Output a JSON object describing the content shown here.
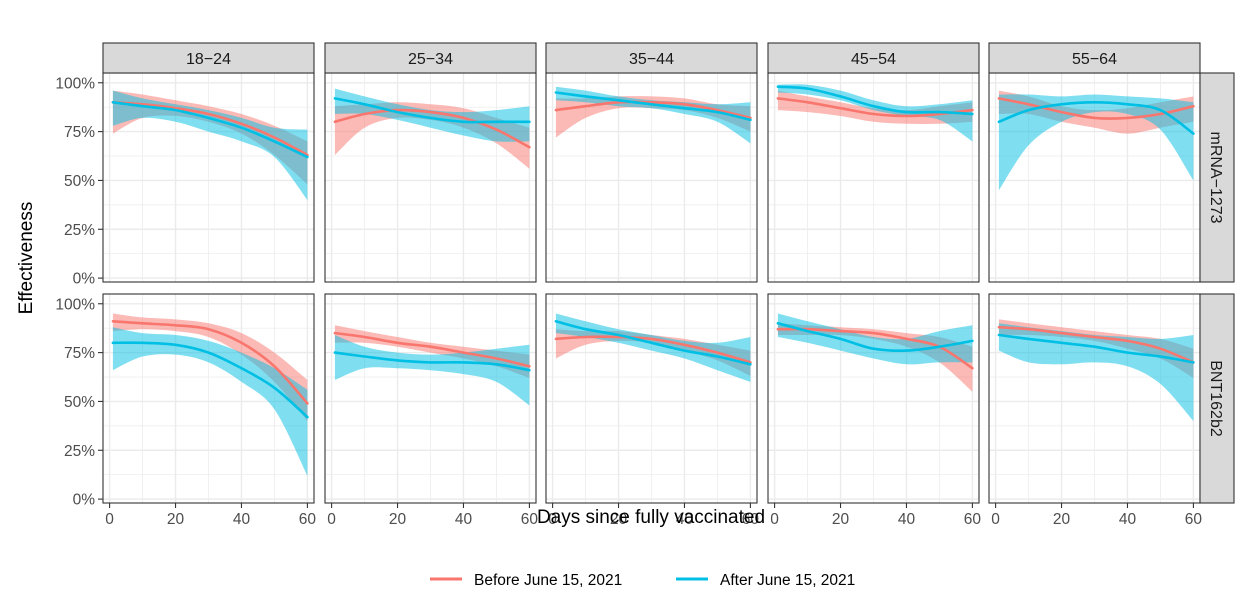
{
  "chart_data": {
    "type": "line",
    "xlabel": "Days since fully vaccinated",
    "ylabel": "Effectiveness",
    "xlim": [
      -2,
      62
    ],
    "ylim": [
      -0.02,
      1.05
    ],
    "x_ticks": [
      0,
      20,
      40,
      60
    ],
    "x_tick_labels": [
      "0",
      "20",
      "40",
      "60"
    ],
    "y_ticks": [
      0,
      0.25,
      0.5,
      0.75,
      1.0
    ],
    "y_tick_labels": [
      "0%",
      "25%",
      "50%",
      "75%",
      "100%"
    ],
    "grid": true,
    "legend_position": "bottom",
    "columns": [
      "18−24",
      "25−34",
      "35−44",
      "45−54",
      "55−64"
    ],
    "rows": [
      "mRNA−1273",
      "BNT162b2"
    ],
    "colors": {
      "before": "#F8766D",
      "after": "#00BFE4"
    },
    "legend": [
      {
        "key": "before",
        "label": "Before June 15, 2021"
      },
      {
        "key": "after",
        "label": "After June 15, 2021"
      }
    ],
    "x": [
      1,
      10,
      20,
      30,
      40,
      50,
      60
    ],
    "panels": [
      {
        "row": 0,
        "col": 0,
        "before": {
          "y": [
            0.9,
            0.89,
            0.87,
            0.84,
            0.79,
            0.72,
            0.63
          ],
          "lo": [
            0.74,
            0.82,
            0.83,
            0.8,
            0.74,
            0.63,
            0.48
          ],
          "hi": [
            0.96,
            0.94,
            0.91,
            0.88,
            0.84,
            0.78,
            0.7
          ]
        },
        "after": {
          "y": [
            0.9,
            0.88,
            0.86,
            0.82,
            0.77,
            0.7,
            0.62
          ],
          "lo": [
            0.78,
            0.82,
            0.8,
            0.75,
            0.7,
            0.62,
            0.4
          ],
          "hi": [
            0.96,
            0.92,
            0.89,
            0.86,
            0.82,
            0.77,
            0.76
          ]
        }
      },
      {
        "row": 0,
        "col": 1,
        "before": {
          "y": [
            0.8,
            0.84,
            0.86,
            0.85,
            0.82,
            0.76,
            0.67
          ],
          "lo": [
            0.63,
            0.77,
            0.82,
            0.81,
            0.77,
            0.69,
            0.56
          ],
          "hi": [
            0.88,
            0.89,
            0.9,
            0.89,
            0.87,
            0.82,
            0.77
          ]
        },
        "after": {
          "y": [
            0.92,
            0.89,
            0.85,
            0.82,
            0.8,
            0.8,
            0.8
          ],
          "lo": [
            0.84,
            0.84,
            0.81,
            0.77,
            0.73,
            0.7,
            0.7
          ],
          "hi": [
            0.97,
            0.93,
            0.89,
            0.86,
            0.85,
            0.86,
            0.88
          ]
        }
      },
      {
        "row": 0,
        "col": 2,
        "before": {
          "y": [
            0.86,
            0.88,
            0.9,
            0.9,
            0.89,
            0.86,
            0.82
          ],
          "lo": [
            0.72,
            0.82,
            0.87,
            0.87,
            0.86,
            0.82,
            0.75
          ],
          "hi": [
            0.92,
            0.92,
            0.93,
            0.93,
            0.92,
            0.89,
            0.88
          ]
        },
        "after": {
          "y": [
            0.95,
            0.93,
            0.91,
            0.89,
            0.87,
            0.85,
            0.81
          ],
          "lo": [
            0.91,
            0.9,
            0.88,
            0.87,
            0.84,
            0.8,
            0.69
          ],
          "hi": [
            0.98,
            0.96,
            0.93,
            0.91,
            0.9,
            0.89,
            0.9
          ]
        }
      },
      {
        "row": 0,
        "col": 3,
        "before": {
          "y": [
            0.92,
            0.9,
            0.87,
            0.84,
            0.83,
            0.84,
            0.86
          ],
          "lo": [
            0.86,
            0.85,
            0.83,
            0.8,
            0.79,
            0.79,
            0.8
          ],
          "hi": [
            0.96,
            0.93,
            0.9,
            0.87,
            0.86,
            0.88,
            0.9
          ]
        },
        "after": {
          "y": [
            0.98,
            0.97,
            0.93,
            0.88,
            0.85,
            0.85,
            0.84
          ],
          "lo": [
            0.95,
            0.94,
            0.91,
            0.86,
            0.83,
            0.81,
            0.7
          ],
          "hi": [
            0.99,
            0.99,
            0.96,
            0.91,
            0.88,
            0.89,
            0.91
          ]
        }
      },
      {
        "row": 0,
        "col": 4,
        "before": {
          "y": [
            0.92,
            0.89,
            0.85,
            0.82,
            0.82,
            0.84,
            0.88
          ],
          "lo": [
            0.84,
            0.84,
            0.8,
            0.77,
            0.74,
            0.77,
            0.8
          ],
          "hi": [
            0.96,
            0.93,
            0.88,
            0.86,
            0.87,
            0.9,
            0.93
          ]
        },
        "after": {
          "y": [
            0.8,
            0.86,
            0.89,
            0.9,
            0.89,
            0.86,
            0.74
          ],
          "lo": [
            0.45,
            0.68,
            0.8,
            0.85,
            0.84,
            0.76,
            0.5
          ],
          "hi": [
            0.94,
            0.94,
            0.93,
            0.94,
            0.93,
            0.92,
            0.9
          ]
        }
      },
      {
        "row": 1,
        "col": 0,
        "before": {
          "y": [
            0.91,
            0.9,
            0.89,
            0.87,
            0.8,
            0.68,
            0.49
          ],
          "lo": [
            0.86,
            0.87,
            0.86,
            0.83,
            0.74,
            0.6,
            0.4
          ],
          "hi": [
            0.95,
            0.93,
            0.92,
            0.9,
            0.85,
            0.75,
            0.61
          ]
        },
        "after": {
          "y": [
            0.8,
            0.8,
            0.79,
            0.75,
            0.67,
            0.57,
            0.42
          ],
          "lo": [
            0.66,
            0.73,
            0.74,
            0.7,
            0.6,
            0.46,
            0.12
          ],
          "hi": [
            0.88,
            0.85,
            0.84,
            0.81,
            0.75,
            0.67,
            0.56
          ]
        }
      },
      {
        "row": 1,
        "col": 1,
        "before": {
          "y": [
            0.85,
            0.83,
            0.8,
            0.78,
            0.75,
            0.72,
            0.68
          ],
          "lo": [
            0.8,
            0.8,
            0.78,
            0.75,
            0.72,
            0.68,
            0.62
          ],
          "hi": [
            0.89,
            0.86,
            0.83,
            0.8,
            0.78,
            0.76,
            0.74
          ]
        },
        "after": {
          "y": [
            0.75,
            0.73,
            0.71,
            0.7,
            0.7,
            0.69,
            0.66
          ],
          "lo": [
            0.61,
            0.67,
            0.67,
            0.66,
            0.64,
            0.6,
            0.48
          ],
          "hi": [
            0.84,
            0.78,
            0.75,
            0.74,
            0.75,
            0.77,
            0.79
          ]
        }
      },
      {
        "row": 1,
        "col": 2,
        "before": {
          "y": [
            0.82,
            0.83,
            0.83,
            0.82,
            0.79,
            0.75,
            0.7
          ],
          "lo": [
            0.72,
            0.79,
            0.81,
            0.8,
            0.76,
            0.71,
            0.63
          ],
          "hi": [
            0.87,
            0.86,
            0.86,
            0.84,
            0.82,
            0.79,
            0.76
          ]
        },
        "after": {
          "y": [
            0.91,
            0.87,
            0.84,
            0.8,
            0.76,
            0.73,
            0.69
          ],
          "lo": [
            0.85,
            0.83,
            0.8,
            0.76,
            0.72,
            0.66,
            0.6
          ],
          "hi": [
            0.95,
            0.91,
            0.87,
            0.84,
            0.81,
            0.8,
            0.83
          ]
        }
      },
      {
        "row": 1,
        "col": 3,
        "before": {
          "y": [
            0.87,
            0.87,
            0.86,
            0.85,
            0.82,
            0.78,
            0.67
          ],
          "lo": [
            0.84,
            0.84,
            0.84,
            0.82,
            0.78,
            0.7,
            0.55
          ],
          "hi": [
            0.9,
            0.89,
            0.88,
            0.87,
            0.85,
            0.83,
            0.78
          ]
        },
        "after": {
          "y": [
            0.9,
            0.86,
            0.82,
            0.77,
            0.76,
            0.78,
            0.81
          ],
          "lo": [
            0.83,
            0.8,
            0.76,
            0.72,
            0.69,
            0.7,
            0.7
          ],
          "hi": [
            0.95,
            0.91,
            0.87,
            0.83,
            0.82,
            0.86,
            0.89
          ]
        }
      },
      {
        "row": 1,
        "col": 4,
        "before": {
          "y": [
            0.88,
            0.87,
            0.85,
            0.83,
            0.81,
            0.77,
            0.7
          ],
          "lo": [
            0.84,
            0.84,
            0.83,
            0.81,
            0.77,
            0.72,
            0.62
          ],
          "hi": [
            0.92,
            0.9,
            0.88,
            0.86,
            0.84,
            0.82,
            0.77
          ]
        },
        "after": {
          "y": [
            0.84,
            0.82,
            0.8,
            0.78,
            0.75,
            0.73,
            0.7
          ],
          "lo": [
            0.76,
            0.7,
            0.69,
            0.7,
            0.68,
            0.59,
            0.4
          ],
          "hi": [
            0.9,
            0.88,
            0.86,
            0.84,
            0.83,
            0.82,
            0.84
          ]
        }
      }
    ]
  }
}
